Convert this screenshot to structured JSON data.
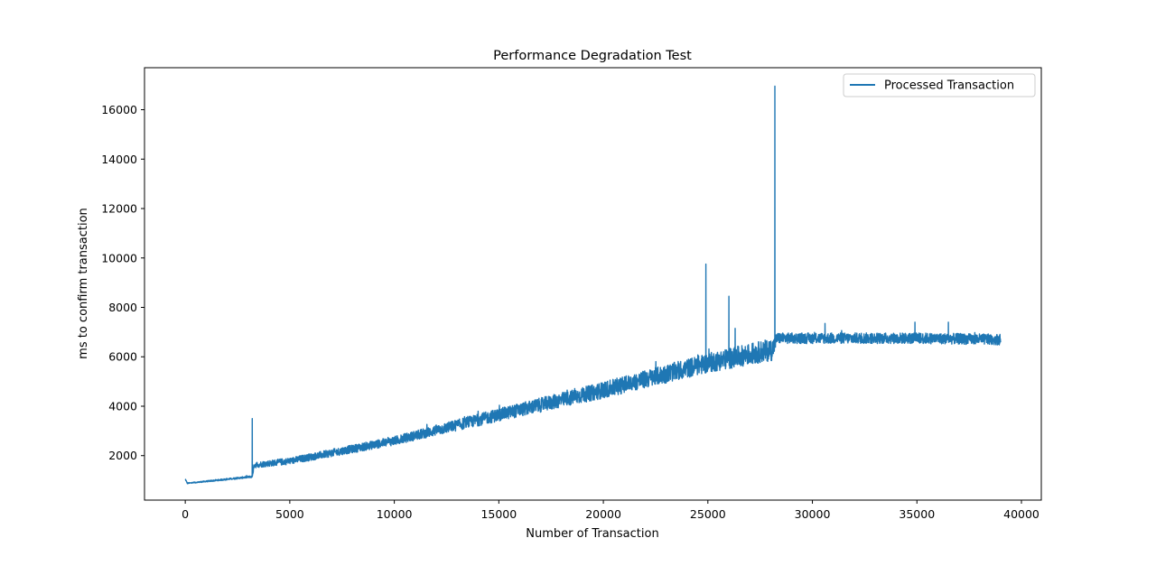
{
  "chart_data": {
    "type": "line",
    "title": "Performance Degradation Test",
    "xlabel": "Number of Transaction",
    "ylabel": "ms to confirm transaction",
    "xlim": [
      -1950,
      40950
    ],
    "ylim": [
      200,
      17700
    ],
    "xticks": [
      0,
      5000,
      10000,
      15000,
      20000,
      25000,
      30000,
      35000,
      40000
    ],
    "yticks": [
      2000,
      4000,
      6000,
      8000,
      10000,
      12000,
      14000,
      16000
    ],
    "grid": false,
    "legend": {
      "position": "top-right",
      "entries": [
        "Processed Transaction"
      ]
    },
    "series": [
      {
        "name": "Processed Transaction",
        "color": "#1f77b4",
        "trend": [
          [
            0,
            1050
          ],
          [
            100,
            880
          ],
          [
            3200,
            1150
          ],
          [
            3300,
            1620
          ],
          [
            5000,
            1780
          ],
          [
            10000,
            2600
          ],
          [
            15000,
            3650
          ],
          [
            20000,
            4650
          ],
          [
            25000,
            5750
          ],
          [
            28100,
            6300
          ],
          [
            28300,
            6750
          ],
          [
            35000,
            6750
          ],
          [
            39000,
            6700
          ]
        ],
        "noise": [
          [
            0,
            20
          ],
          [
            3200,
            40
          ],
          [
            3300,
            120
          ],
          [
            10000,
            180
          ],
          [
            15000,
            260
          ],
          [
            20000,
            330
          ],
          [
            25000,
            400
          ],
          [
            28100,
            450
          ],
          [
            28300,
            220
          ],
          [
            39000,
            220
          ]
        ],
        "spikes": [
          [
            3200,
            3500
          ],
          [
            24900,
            9750
          ],
          [
            26000,
            8450
          ],
          [
            26300,
            7150
          ],
          [
            28200,
            16950
          ],
          [
            30600,
            7350
          ],
          [
            34900,
            7400
          ],
          [
            36500,
            7400
          ]
        ]
      }
    ]
  }
}
